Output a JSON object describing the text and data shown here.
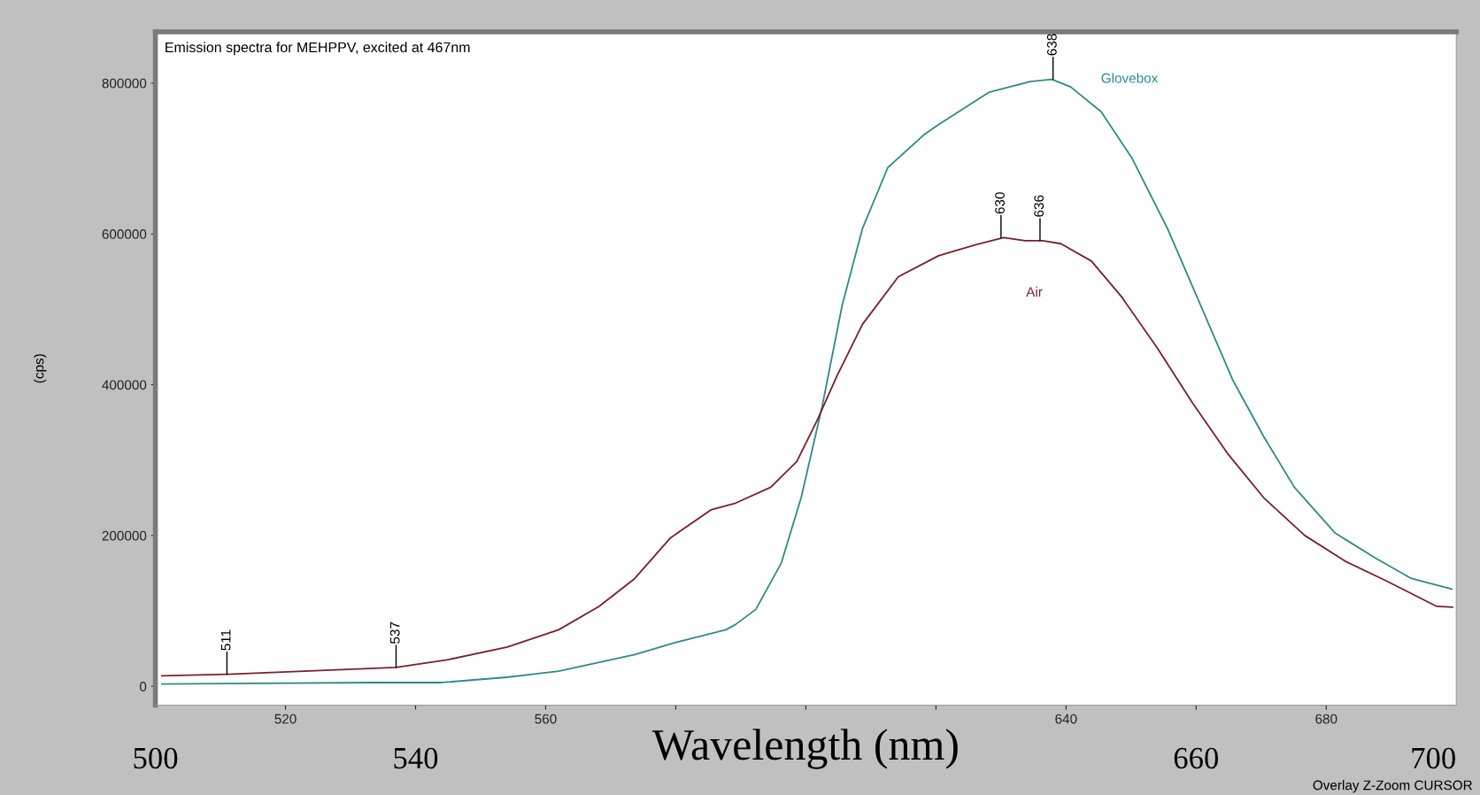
{
  "chart_data": {
    "type": "line",
    "title": "Emission spectra for MEHPPV, excited at 467nm",
    "ylabel": "(cps)",
    "x2label": "Wavelength (nm)",
    "series": [
      {
        "name": "Glovebox",
        "color": "#2e8a8a",
        "x": [
          501,
          533.8,
          544,
          554,
          562,
          573.7,
          579.9,
          587.7,
          589.2,
          592.3,
          596.2,
          599.3,
          602.5,
          605.6,
          608.7,
          612.6,
          618.1,
          620.4,
          628.2,
          634.5,
          637.8,
          640.7,
          645.4,
          650.1,
          655.6,
          661.0,
          665.7,
          670.4,
          675.1,
          681.4,
          687.6,
          693.1,
          699.3
        ],
        "values": [
          3000,
          5000,
          5000,
          12000,
          20000,
          42000,
          58000,
          75000,
          82000,
          102000,
          163000,
          251000,
          371000,
          506000,
          607000,
          688000,
          731000,
          745000,
          788000,
          802000,
          805000,
          795000,
          762000,
          701000,
          607000,
          499000,
          405000,
          331000,
          264000,
          203000,
          170000,
          143000,
          129000
        ]
      },
      {
        "name": "Air",
        "color": "#7a1f2a",
        "x": [
          501,
          511.2,
          537,
          544.8,
          554.1,
          562,
          568.2,
          573.7,
          579.2,
          585.4,
          589.2,
          594.6,
          598.6,
          601.7,
          604.8,
          608.7,
          614.2,
          620.4,
          625.9,
          630.4,
          633.7,
          636.4,
          639.2,
          643.9,
          648.5,
          654.0,
          659.5,
          664.9,
          670.4,
          676.7,
          682.9,
          689.2,
          697.0,
          699.4
        ],
        "values": [
          14000,
          16000,
          25000,
          35000,
          52000,
          75000,
          106000,
          143000,
          197000,
          234000,
          243000,
          264000,
          298000,
          352000,
          412000,
          480000,
          543000,
          571000,
          585000,
          595000,
          591000,
          591000,
          587000,
          564000,
          517000,
          449000,
          375000,
          308000,
          250000,
          200000,
          166000,
          140000,
          106000,
          105000
        ]
      }
    ],
    "xlim": [
      500,
      700
    ],
    "xticks": [
      520,
      {
        "value": 540,
        "label": null
      },
      560,
      {
        "value": 580,
        "label": null
      },
      {
        "value": 600,
        "label": null
      },
      {
        "value": 620,
        "label": null
      },
      640,
      {
        "value": 660,
        "label": null
      },
      680
    ],
    "x2lim": [
      500,
      700
    ],
    "x2ticks": [
      500,
      540,
      660,
      700
    ],
    "ylim": [
      -25000,
      868000
    ],
    "yticks": [
      0,
      200000,
      400000,
      600000,
      800000
    ],
    "grid": false,
    "legend": false,
    "annotations": [
      {
        "text": "511",
        "x": 511,
        "y": 16000
      },
      {
        "text": "537",
        "x": 537,
        "y": 25000
      },
      {
        "text": "630",
        "x": 630,
        "y": 595000
      },
      {
        "text": "636",
        "x": 636,
        "y": 591000
      },
      {
        "text": "638",
        "x": 638,
        "y": 805000
      },
      "Overlay Z-Zoom CURSOR"
    ]
  }
}
